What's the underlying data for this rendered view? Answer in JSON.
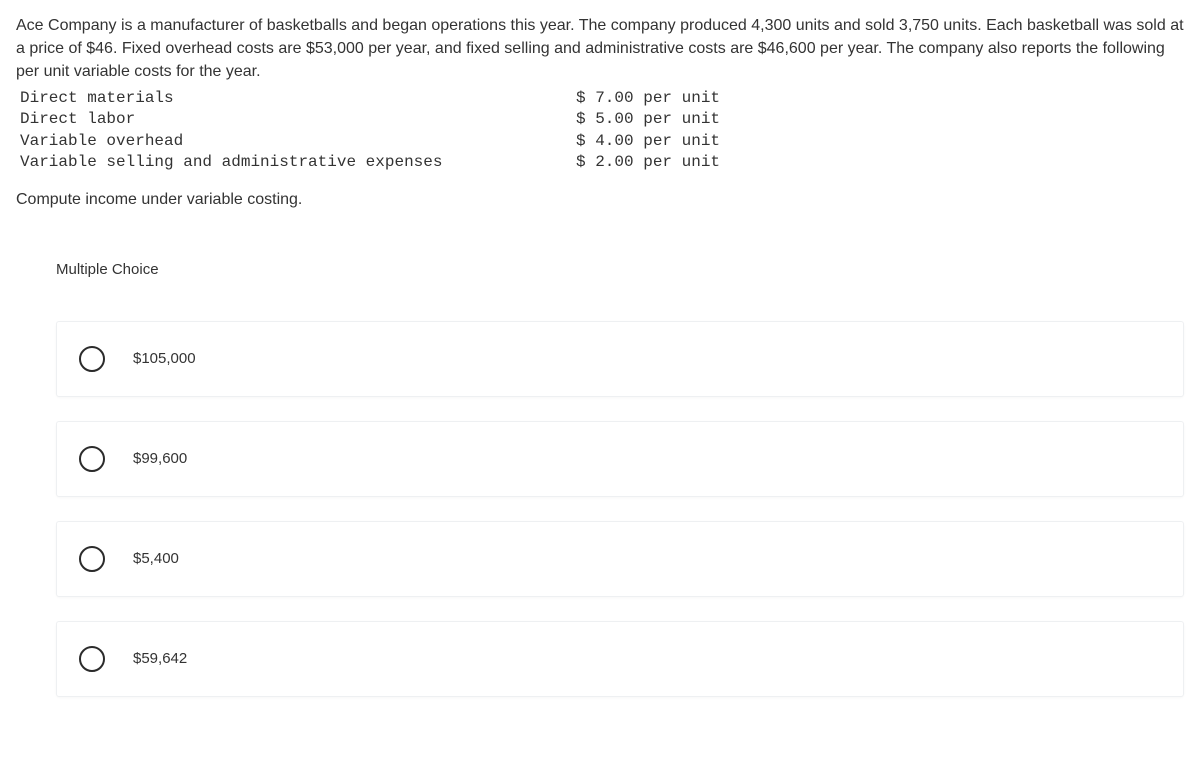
{
  "problem": {
    "intro": "Ace Company is a manufacturer of basketballs and began operations this year. The company produced 4,300 units and sold 3,750 units. Each basketball was sold at a price of $46. Fixed overhead costs are $53,000 per year, and fixed selling and administrative costs are $46,600 per year. The company also reports the following per unit variable costs for the year.",
    "costs": [
      {
        "label": "Direct materials",
        "value": "$ 7.00 per unit"
      },
      {
        "label": "Direct labor",
        "value": "$ 5.00 per unit"
      },
      {
        "label": "Variable overhead",
        "value": "$ 4.00 per unit"
      },
      {
        "label": "Variable selling and administrative expenses",
        "value": "$ 2.00 per unit"
      }
    ],
    "instruction": "Compute income under variable costing."
  },
  "quiz": {
    "heading": "Multiple Choice",
    "options": [
      {
        "label": "$105,000"
      },
      {
        "label": "$99,600"
      },
      {
        "label": "$5,400"
      },
      {
        "label": "$59,642"
      }
    ]
  },
  "colors": {
    "text": "#333333",
    "background": "#ffffff",
    "card_border": "#eef0f2",
    "radio_border": "#2b2b2b"
  }
}
